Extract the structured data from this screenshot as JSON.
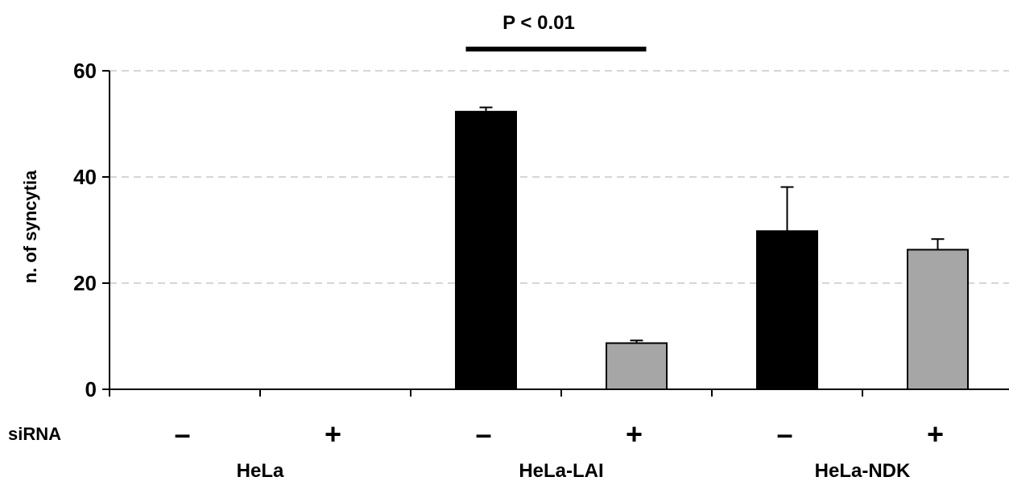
{
  "chart_data": {
    "type": "bar",
    "ylabel": "n. of syncytia",
    "ylim": [
      0,
      60
    ],
    "yticks": [
      0,
      20,
      40,
      60
    ],
    "grid": true,
    "row_label": "siRNA",
    "groups": [
      "HeLa",
      "HeLa-LAI",
      "HeLa-NDK"
    ],
    "categories": [
      "–",
      "+",
      "–",
      "+",
      "–",
      "+"
    ],
    "group_of_category": [
      0,
      0,
      1,
      1,
      2,
      2
    ],
    "values": [
      0,
      0,
      52.3,
      8.7,
      29.8,
      26.3
    ],
    "errors": [
      0,
      0,
      0.8,
      0.5,
      8.3,
      2.0
    ],
    "bar_colors": [
      "#000000",
      "#a6a6a6",
      "#000000",
      "#a6a6a6",
      "#000000",
      "#a6a6a6"
    ],
    "annotation": {
      "text": "P < 0.01",
      "between": [
        2,
        3
      ]
    }
  }
}
